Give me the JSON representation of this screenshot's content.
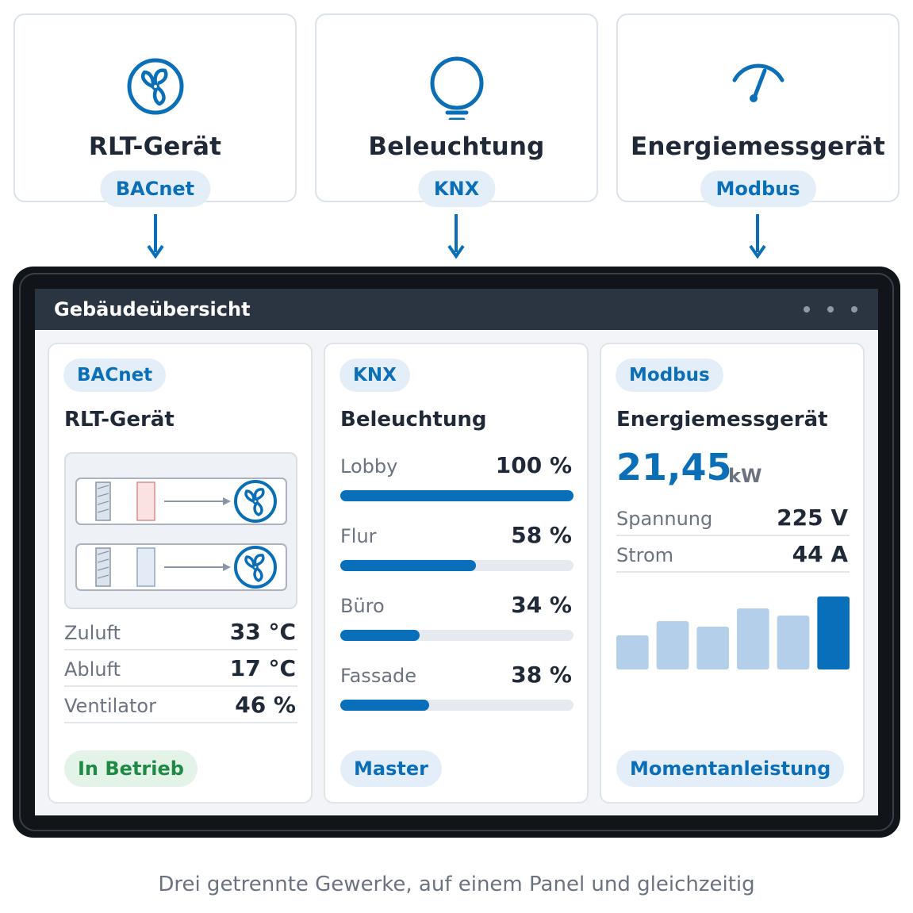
{
  "sources": [
    {
      "title": "RLT-Gerät",
      "protocol": "BACnet",
      "icon": "fan-icon"
    },
    {
      "title": "Beleuchtung",
      "protocol": "KNX",
      "icon": "lightbulb-icon"
    },
    {
      "title": "Energiemessgerät",
      "protocol": "Modbus",
      "icon": "gauge-icon"
    }
  ],
  "panel": {
    "title": "Gebäudeübersicht",
    "rlt": {
      "protocol": "BACnet",
      "title": "RLT-Gerät",
      "rows": [
        {
          "label": "Zuluft",
          "value": "33 °C"
        },
        {
          "label": "Abluft",
          "value": "17 °C"
        },
        {
          "label": "Ventilator",
          "value": "46 %"
        }
      ],
      "status": "In Betrieb"
    },
    "knx": {
      "protocol": "KNX",
      "title": "Beleuchtung",
      "zones": [
        {
          "label": "Lobby",
          "value": "100 %",
          "level": 100
        },
        {
          "label": "Flur",
          "value": "58 %",
          "level": 58
        },
        {
          "label": "Büro",
          "value": "34 %",
          "level": 34
        },
        {
          "label": "Fassade",
          "value": "38 %",
          "level": 38
        }
      ],
      "role": "Master"
    },
    "modbus": {
      "protocol": "Modbus",
      "title": "Energiemessgerät",
      "power_value": "21,45",
      "power_unit": "kW",
      "rows": [
        {
          "label": "Spannung",
          "value": "225 V"
        },
        {
          "label": "Strom",
          "value": "44 A"
        }
      ],
      "footer": "Momentanleistung"
    }
  },
  "chart_data": {
    "type": "bar",
    "categories": [
      "1",
      "2",
      "3",
      "4",
      "5",
      "6"
    ],
    "values": [
      43,
      61,
      54,
      77,
      68,
      92
    ],
    "ylim": [
      0,
      100
    ],
    "highlight_index": 5,
    "colors": {
      "bar": "#b3cfe9",
      "highlight": "#0a6fba"
    }
  },
  "caption": "Drei getrennte Gewerke, auf einem Panel und gleichzeitig",
  "colors": {
    "accent": "#0b6fb8",
    "ok": "#1e8a46",
    "frame": "#111418",
    "titlebar": "#2b3441"
  }
}
